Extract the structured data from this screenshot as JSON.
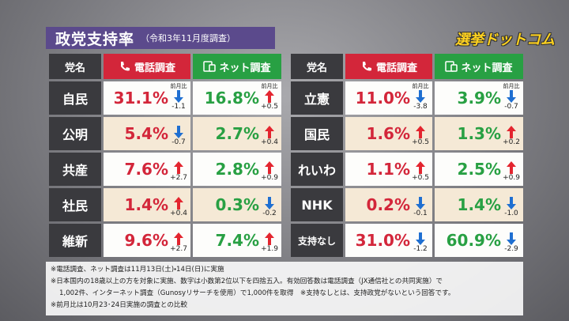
{
  "header": {
    "title": "政党支持率",
    "subtitle": "（令和3年11月度調査）",
    "logo": "選挙ドットコム"
  },
  "table": {
    "columns": [
      "党名",
      "電話調査",
      "ネット調査"
    ],
    "change_label": "前月比",
    "rows": [
      {
        "party": "自民",
        "phone": "31.1%",
        "phone_change": "-1.1",
        "net": "16.8%",
        "net_change": "+0.5"
      },
      {
        "party": "公明",
        "phone": "5.4%",
        "phone_change": "-0.7",
        "net": "2.7%",
        "net_change": "+0.4"
      },
      {
        "party": "共産",
        "phone": "7.6%",
        "phone_change": "+2.7",
        "net": "2.8%",
        "net_change": "+0.9"
      },
      {
        "party": "社民",
        "phone": "1.4%",
        "phone_change": "+0.4",
        "net": "0.3%",
        "net_change": "-0.2"
      },
      {
        "party": "維新",
        "phone": "9.6%",
        "phone_change": "+2.7",
        "net": "7.4%",
        "net_change": "+1.9"
      },
      {
        "party": "立憲",
        "phone": "11.0%",
        "phone_change": "-3.8",
        "net": "3.9%",
        "net_change": "-0.7"
      },
      {
        "party": "国民",
        "phone": "1.6%",
        "phone_change": "+0.5",
        "net": "1.3%",
        "net_change": "+0.2"
      },
      {
        "party": "れいわ",
        "phone": "1.1%",
        "phone_change": "+0.5",
        "net": "2.5%",
        "net_change": "+0.9"
      },
      {
        "party": "NHK",
        "phone": "0.2%",
        "phone_change": "-0.1",
        "net": "1.4%",
        "net_change": "-1.0"
      },
      {
        "party": "支持なし",
        "phone": "31.0%",
        "phone_change": "-1.2",
        "net": "60.9%",
        "net_change": "-2.9"
      }
    ]
  },
  "notes": [
    "※電話調査、ネット調査は11月13日(土)・14日(日)に実施",
    "※日本国内の18歳以上の方を対象に実施、数字は小数第2位以下を四捨五入。有効回答数は電話調査（JX通信社との共同実施）で",
    "1,002件、インターネット調査（Gunosyリサーチを使用）で1,000件を取得　※支持なしとは、支持政党がないという回答です。",
    "※前月比は10月23･24日実施の調査との比較"
  ]
}
